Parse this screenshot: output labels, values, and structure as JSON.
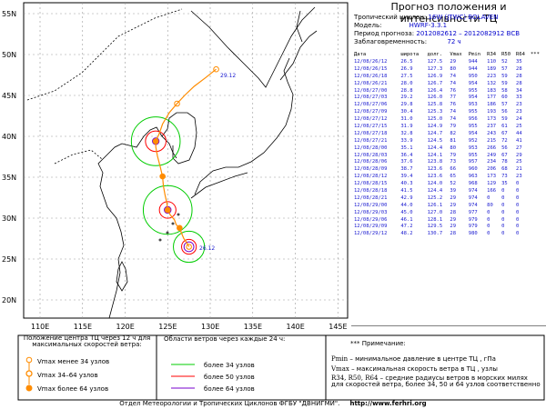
{
  "header": {
    "title": "Прогноз положения и интенсивности ТЦ",
    "cyclone_label": "Тропический циклон:",
    "cyclone_value": "16W (JTWC) BOLAVEN",
    "model_label": "Модель:",
    "model_value": "HWRF-3.3.1",
    "period_label": "Период прогноза:",
    "period_value": "2012082612 – 2012082912 ВСВ",
    "lead_label": "Заблаговременность:",
    "lead_value": "72 ч"
  },
  "table": {
    "columns": [
      "Дата",
      "широта",
      "долг.",
      "Vmax",
      "Pmin",
      "R34",
      "R50",
      "R64",
      "***"
    ],
    "rows": [
      [
        "12/08/26/12",
        "26.5",
        "127.5",
        "29",
        "944",
        "110",
        "52",
        "35"
      ],
      [
        "12/08/26/15",
        "26.9",
        "127.3",
        "80",
        "944",
        "189",
        "57",
        "28"
      ],
      [
        "12/08/26/18",
        "27.5",
        "126.9",
        "74",
        "950",
        "223",
        "59",
        "28"
      ],
      [
        "12/08/26/21",
        "28.0",
        "126.7",
        "74",
        "954",
        "132",
        "59",
        "28"
      ],
      [
        "12/08/27/00",
        "28.8",
        "126.4",
        "76",
        "955",
        "183",
        "58",
        "34"
      ],
      [
        "12/08/27/03",
        "29.2",
        "126.0",
        "77",
        "954",
        "177",
        "60",
        "33"
      ],
      [
        "12/08/27/06",
        "29.8",
        "125.8",
        "76",
        "953",
        "186",
        "57",
        "23"
      ],
      [
        "12/08/27/09",
        "30.4",
        "125.3",
        "74",
        "955",
        "193",
        "56",
        "23"
      ],
      [
        "12/08/27/12",
        "31.0",
        "125.0",
        "74",
        "956",
        "173",
        "59",
        "24"
      ],
      [
        "12/08/27/15",
        "31.9",
        "124.9",
        "79",
        "955",
        "237",
        "61",
        "25"
      ],
      [
        "12/08/27/18",
        "32.8",
        "124.7",
        "82",
        "954",
        "243",
        "67",
        "44"
      ],
      [
        "12/08/27/21",
        "33.9",
        "124.5",
        "81",
        "952",
        "215",
        "72",
        "41"
      ],
      [
        "12/08/28/00",
        "35.1",
        "124.4",
        "80",
        "953",
        "266",
        "56",
        "27"
      ],
      [
        "12/08/28/03",
        "36.4",
        "124.1",
        "79",
        "955",
        "249",
        "67",
        "29"
      ],
      [
        "12/08/28/06",
        "37.6",
        "123.8",
        "73",
        "957",
        "234",
        "78",
        "25"
      ],
      [
        "12/08/28/09",
        "38.7",
        "123.6",
        "66",
        "960",
        "206",
        "68",
        "21"
      ],
      [
        "12/08/28/12",
        "39.4",
        "123.6",
        "65",
        "963",
        "173",
        "73",
        "23"
      ],
      [
        "12/08/28/15",
        "40.3",
        "124.0",
        "52",
        "968",
        "129",
        "35",
        "0"
      ],
      [
        "12/08/28/18",
        "41.5",
        "124.4",
        "39",
        "974",
        "166",
        "0",
        "0"
      ],
      [
        "12/08/28/21",
        "42.9",
        "125.2",
        "29",
        "974",
        "0",
        "0",
        "0"
      ],
      [
        "12/08/29/00",
        "44.0",
        "126.1",
        "29",
        "974",
        "80",
        "0",
        "0"
      ],
      [
        "12/08/29/03",
        "45.0",
        "127.0",
        "28",
        "977",
        "0",
        "0",
        "0"
      ],
      [
        "12/08/29/06",
        "46.1",
        "128.1",
        "29",
        "979",
        "0",
        "0",
        "0"
      ],
      [
        "12/08/29/09",
        "47.2",
        "129.5",
        "29",
        "979",
        "0",
        "0",
        "0"
      ],
      [
        "12/08/29/12",
        "48.2",
        "130.7",
        "28",
        "980",
        "0",
        "0",
        "0"
      ]
    ]
  },
  "map": {
    "lat_labels": [
      "55N",
      "50N",
      "45N",
      "40N",
      "35N",
      "30N",
      "25N",
      "20N"
    ],
    "lon_labels": [
      "110E",
      "115E",
      "120E",
      "125E",
      "130E",
      "135E",
      "140E",
      "145E"
    ],
    "start_label": "26.12",
    "end_label": "29.12",
    "land_color": "#000000",
    "track_color": "#ff8c00",
    "ring_colors": {
      "r34": "#00cc00",
      "r50": "#ff0000",
      "r64": "#7700cc"
    }
  },
  "legend": {
    "left_title": "Положение центра ТЦ через 12 ч для максимальных скоростей ветра:",
    "left_items": [
      {
        "prefix": "Vmax",
        "text": "менее 34 узлов"
      },
      {
        "prefix": "Vmax",
        "text": "34–64 узлов"
      },
      {
        "prefix": "Vmax",
        "text": "более 64 узлов"
      }
    ],
    "mid_title": "Области ветров через каждые 24 ч:",
    "mid_items": [
      {
        "text": "более 34 узлов",
        "color": "#00cc00"
      },
      {
        "text": "более 50 узлов",
        "color": "#ff0000"
      },
      {
        "text": "более 64 узлов",
        "color": "#7700cc"
      }
    ],
    "right_title": "*** Примечание:",
    "notes": [
      {
        "key": "Pmin",
        "text": "– минимальное давление в центре ТЦ , гПа"
      },
      {
        "key": "Vmax",
        "text": "– максимальная скорость ветра в ТЦ , узлы"
      },
      {
        "key": "R34, R50, R64",
        "text": "– средние радиусы ветров в морских милях для скоростей ветра, более 34, 50 и 64 узлов соответственно"
      }
    ]
  },
  "footer": {
    "text": "Отдел Метеорологии и Тропических Циклонов ФГБУ \"ДВНИГМИ\".",
    "url": "http://www.ferhri.org"
  }
}
